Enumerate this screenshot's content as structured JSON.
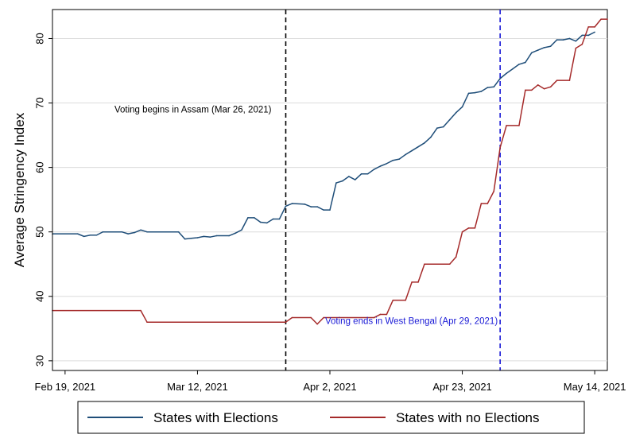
{
  "chart_data": {
    "type": "line",
    "title": "",
    "ylabel": "Average Stringency Index",
    "xlabel": "",
    "ylim": [
      28.5,
      84.5
    ],
    "yticks": [
      30,
      40,
      50,
      60,
      70,
      80
    ],
    "x_tick_labels": [
      {
        "date": "2021-02-19",
        "label": "Feb 19, 2021"
      },
      {
        "date": "2021-03-12",
        "label": "Mar 12, 2021"
      },
      {
        "date": "2021-04-02",
        "label": "Apr 2, 2021"
      },
      {
        "date": "2021-04-23",
        "label": "Apr 23, 2021"
      },
      {
        "date": "2021-05-14",
        "label": "May 14, 2021"
      }
    ],
    "xlim": [
      "2021-02-17",
      "2021-05-16"
    ],
    "grid": "horizontal",
    "legend_position": "bottom",
    "annotations": [
      {
        "text": "Voting begins in Assam (Mar 26, 2021)",
        "date": "2021-03-26",
        "color": "#000000",
        "style": "dashed",
        "label_y": 68.5
      },
      {
        "text": "Voting ends in West Bengal (Apr 29, 2021)",
        "date": "2021-04-29",
        "color": "#1a1ad6",
        "style": "dashed",
        "label_y": 35.7
      }
    ],
    "series": [
      {
        "name": "States with Elections",
        "color": "#1f4e79",
        "points": [
          [
            "2021-02-17",
            49.7
          ],
          [
            "2021-02-21",
            49.7
          ],
          [
            "2021-02-22",
            49.3
          ],
          [
            "2021-02-23",
            49.5
          ],
          [
            "2021-02-24",
            49.5
          ],
          [
            "2021-02-25",
            50.0
          ],
          [
            "2021-02-28",
            50.0
          ],
          [
            "2021-03-01",
            49.7
          ],
          [
            "2021-03-02",
            49.9
          ],
          [
            "2021-03-03",
            50.3
          ],
          [
            "2021-03-04",
            50.0
          ],
          [
            "2021-03-09",
            50.0
          ],
          [
            "2021-03-10",
            48.9
          ],
          [
            "2021-03-11",
            49.0
          ],
          [
            "2021-03-12",
            49.1
          ],
          [
            "2021-03-13",
            49.3
          ],
          [
            "2021-03-14",
            49.2
          ],
          [
            "2021-03-15",
            49.4
          ],
          [
            "2021-03-17",
            49.4
          ],
          [
            "2021-03-18",
            49.8
          ],
          [
            "2021-03-19",
            50.3
          ],
          [
            "2021-03-20",
            52.2
          ],
          [
            "2021-03-21",
            52.2
          ],
          [
            "2021-03-22",
            51.5
          ],
          [
            "2021-03-23",
            51.4
          ],
          [
            "2021-03-24",
            52.0
          ],
          [
            "2021-03-25",
            52.0
          ],
          [
            "2021-03-26",
            54.0
          ],
          [
            "2021-03-27",
            54.4
          ],
          [
            "2021-03-29",
            54.3
          ],
          [
            "2021-03-30",
            53.9
          ],
          [
            "2021-03-31",
            53.9
          ],
          [
            "2021-04-01",
            53.4
          ],
          [
            "2021-04-02",
            53.4
          ],
          [
            "2021-04-03",
            57.6
          ],
          [
            "2021-04-04",
            57.9
          ],
          [
            "2021-04-05",
            58.6
          ],
          [
            "2021-04-06",
            58.1
          ],
          [
            "2021-04-07",
            59.0
          ],
          [
            "2021-04-08",
            59.0
          ],
          [
            "2021-04-09",
            59.7
          ],
          [
            "2021-04-10",
            60.2
          ],
          [
            "2021-04-11",
            60.6
          ],
          [
            "2021-04-12",
            61.1
          ],
          [
            "2021-04-13",
            61.3
          ],
          [
            "2021-04-14",
            62.0
          ],
          [
            "2021-04-15",
            62.6
          ],
          [
            "2021-04-16",
            63.2
          ],
          [
            "2021-04-17",
            63.8
          ],
          [
            "2021-04-18",
            64.7
          ],
          [
            "2021-04-19",
            66.1
          ],
          [
            "2021-04-20",
            66.3
          ],
          [
            "2021-04-21",
            67.4
          ],
          [
            "2021-04-22",
            68.5
          ],
          [
            "2021-04-23",
            69.4
          ],
          [
            "2021-04-24",
            71.5
          ],
          [
            "2021-04-25",
            71.6
          ],
          [
            "2021-04-26",
            71.8
          ],
          [
            "2021-04-27",
            72.4
          ],
          [
            "2021-04-28",
            72.5
          ],
          [
            "2021-04-29",
            73.8
          ],
          [
            "2021-04-30",
            74.6
          ],
          [
            "2021-05-01",
            75.3
          ],
          [
            "2021-05-02",
            76.0
          ],
          [
            "2021-05-03",
            76.3
          ],
          [
            "2021-05-04",
            77.8
          ],
          [
            "2021-05-05",
            78.2
          ],
          [
            "2021-05-06",
            78.6
          ],
          [
            "2021-05-07",
            78.8
          ],
          [
            "2021-05-08",
            79.8
          ],
          [
            "2021-05-09",
            79.8
          ],
          [
            "2021-05-10",
            80.0
          ],
          [
            "2021-05-11",
            79.6
          ],
          [
            "2021-05-12",
            80.5
          ],
          [
            "2021-05-13",
            80.5
          ],
          [
            "2021-05-14",
            81.0
          ]
        ]
      },
      {
        "name": "States with no Elections",
        "color": "#a52a2a",
        "points": [
          [
            "2021-02-17",
            37.8
          ],
          [
            "2021-03-03",
            37.8
          ],
          [
            "2021-03-04",
            36.0
          ],
          [
            "2021-03-26",
            36.0
          ],
          [
            "2021-03-27",
            36.7
          ],
          [
            "2021-03-30",
            36.7
          ],
          [
            "2021-03-31",
            35.7
          ],
          [
            "2021-04-01",
            36.7
          ],
          [
            "2021-04-09",
            36.7
          ],
          [
            "2021-04-10",
            37.2
          ],
          [
            "2021-04-11",
            37.2
          ],
          [
            "2021-04-12",
            39.4
          ],
          [
            "2021-04-14",
            39.4
          ],
          [
            "2021-04-15",
            42.2
          ],
          [
            "2021-04-16",
            42.2
          ],
          [
            "2021-04-17",
            45.0
          ],
          [
            "2021-04-21",
            45.0
          ],
          [
            "2021-04-22",
            46.1
          ],
          [
            "2021-04-23",
            50.0
          ],
          [
            "2021-04-24",
            50.6
          ],
          [
            "2021-04-25",
            50.6
          ],
          [
            "2021-04-26",
            54.4
          ],
          [
            "2021-04-27",
            54.4
          ],
          [
            "2021-04-28",
            56.3
          ],
          [
            "2021-04-29",
            63.1
          ],
          [
            "2021-04-30",
            66.5
          ],
          [
            "2021-05-02",
            66.5
          ],
          [
            "2021-05-03",
            72.0
          ],
          [
            "2021-05-04",
            72.0
          ],
          [
            "2021-05-05",
            72.8
          ],
          [
            "2021-05-06",
            72.2
          ],
          [
            "2021-05-07",
            72.5
          ],
          [
            "2021-05-08",
            73.5
          ],
          [
            "2021-05-10",
            73.5
          ],
          [
            "2021-05-11",
            78.5
          ],
          [
            "2021-05-12",
            79.1
          ],
          [
            "2021-05-13",
            81.8
          ],
          [
            "2021-05-14",
            81.8
          ],
          [
            "2021-05-15",
            83.0
          ],
          [
            "2021-05-16",
            83.0
          ]
        ]
      }
    ]
  }
}
